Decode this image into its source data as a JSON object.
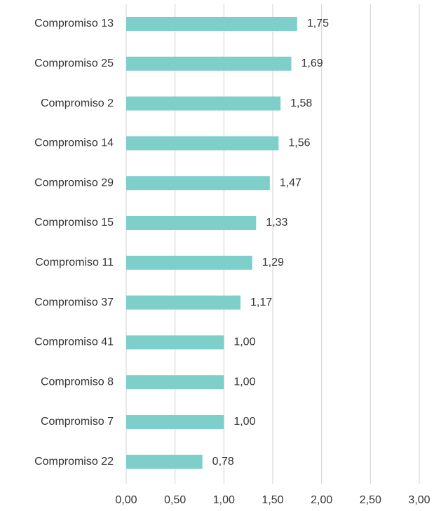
{
  "chart_data": {
    "type": "hbar",
    "categories": [
      "Compromiso 13",
      "Compromiso 25",
      "Compromiso 2",
      "Compromiso 14",
      "Compromiso 29",
      "Compromiso 15",
      "Compromiso 11",
      "Compromiso 37",
      "Compromiso 41",
      "Compromiso 8",
      "Compromiso 7",
      "Compromiso 22"
    ],
    "values": [
      1.75,
      1.69,
      1.58,
      1.56,
      1.47,
      1.33,
      1.29,
      1.17,
      1.0,
      1.0,
      1.0,
      0.78
    ],
    "value_labels": [
      "1,75",
      "1,69",
      "1,58",
      "1,56",
      "1,47",
      "1,33",
      "1,29",
      "1,17",
      "1,00",
      "1,00",
      "1,00",
      "0,78"
    ],
    "color": "#7ecfca",
    "xlim": [
      0,
      3
    ],
    "xticks": [
      {
        "value": 0,
        "label": "0,00"
      },
      {
        "value": 0.5,
        "label": "0,50"
      },
      {
        "value": 1,
        "label": "1,00"
      },
      {
        "value": 1.5,
        "label": "1,50"
      },
      {
        "value": 2,
        "label": "2,00"
      },
      {
        "value": 2.5,
        "label": "2,50"
      },
      {
        "value": 3,
        "label": "3,00"
      }
    ],
    "grid": true
  }
}
